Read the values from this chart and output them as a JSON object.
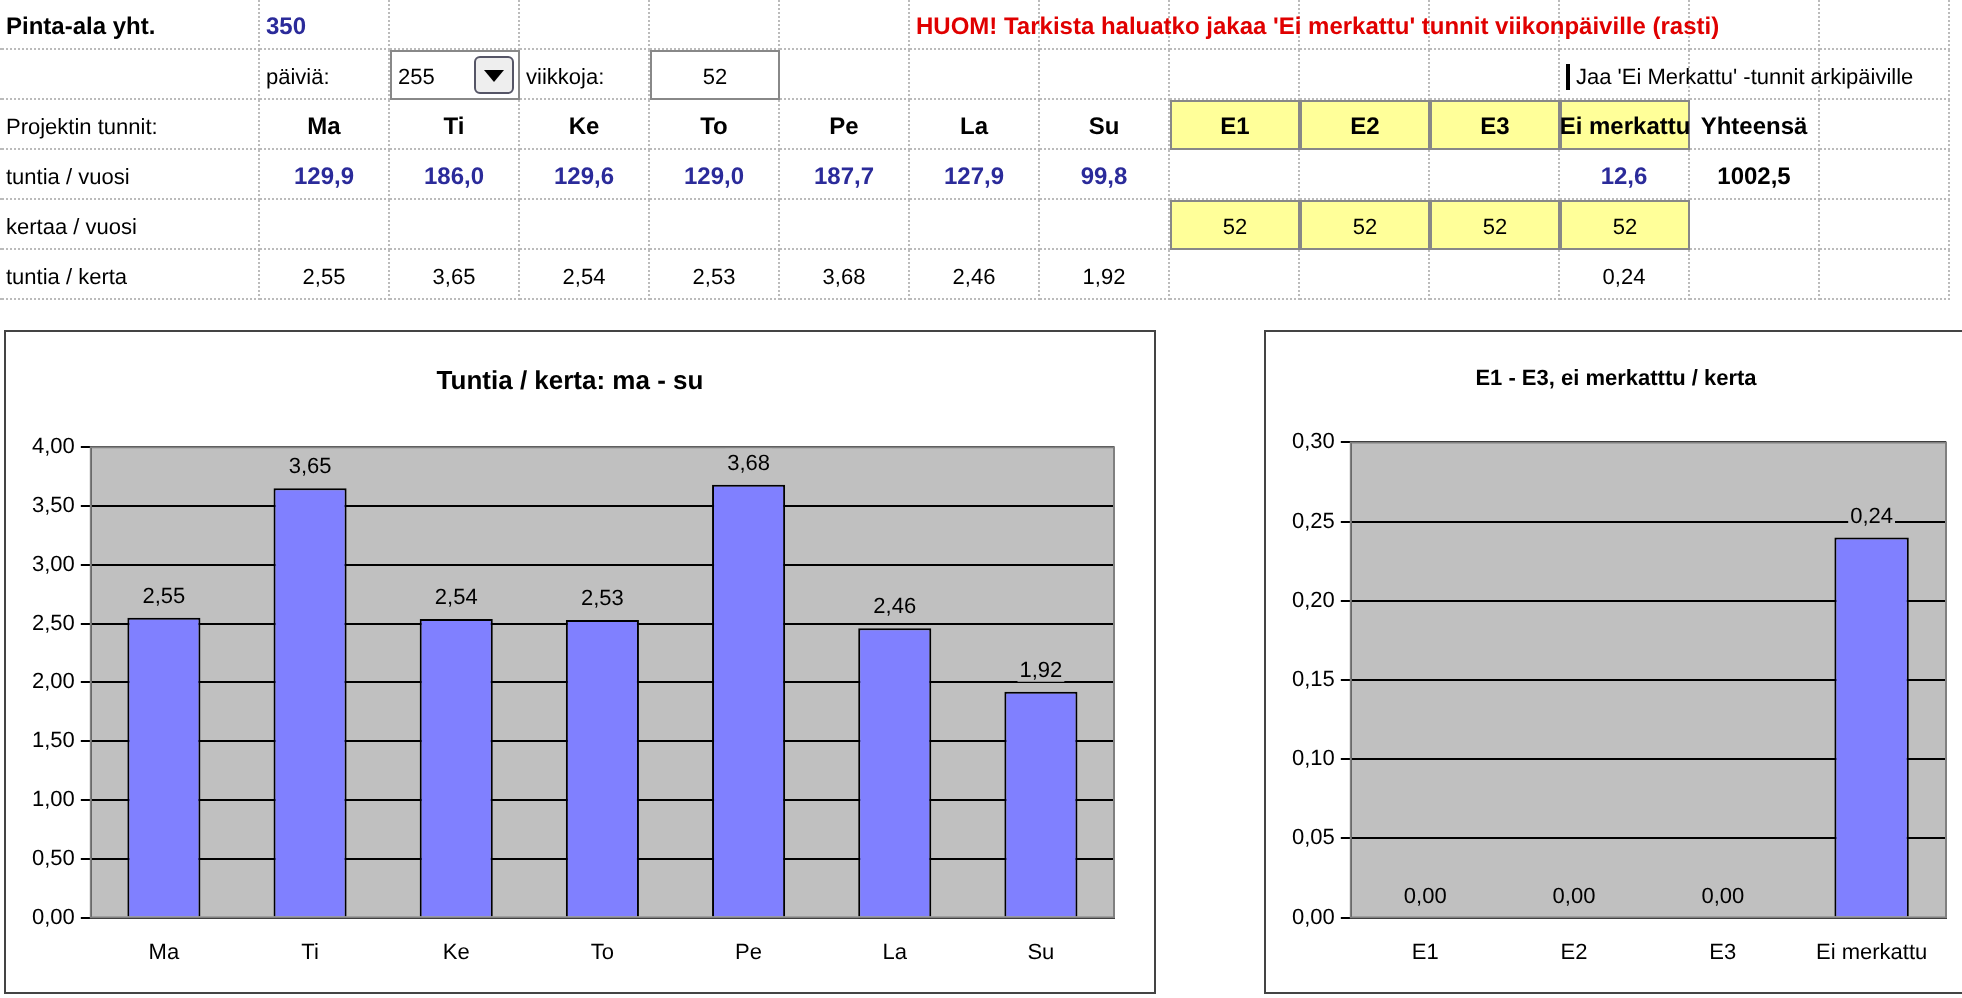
{
  "chart_data": [
    {
      "type": "other",
      "annotations": [
        "Pinta-ala yht.",
        "350",
        "HUOM! Tarkista haluatko jakaa 'Ei merkattu' tunnit viikonpäiville (rasti)",
        "päiviä:",
        "255",
        "viikkoja:",
        "52",
        "Jaa 'Ei Merkattu' -tunnit arkipäiville",
        "Projektin tunnit:",
        "Ma",
        "Ti",
        "Ke",
        "To",
        "Pe",
        "La",
        "Su",
        "E1",
        "E2",
        "E3",
        "Ei merkattu",
        "Yhteensä",
        "tuntia / vuosi",
        "129,9",
        "186,0",
        "129,6",
        "129,0",
        "187,7",
        "127,9",
        "99,8",
        "12,6",
        "1002,5",
        "kertaa / vuosi",
        "52",
        "52",
        "52",
        "52",
        "tuntia / kerta",
        "2,55",
        "3,65",
        "2,54",
        "2,53",
        "3,68",
        "2,46",
        "1,92",
        "0,24"
      ]
    },
    {
      "type": "bar",
      "title": "Tuntia / kerta: ma - su",
      "categories": [
        "Ma",
        "Ti",
        "Ke",
        "To",
        "Pe",
        "La",
        "Su"
      ],
      "values": [
        2.55,
        3.65,
        2.54,
        2.53,
        3.68,
        2.46,
        1.92
      ],
      "color": "#8080ff",
      "value_labels": [
        "2,55",
        "3,65",
        "2,54",
        "2,53",
        "3,68",
        "2,46",
        "1,92"
      ],
      "ylim": [
        0,
        4
      ],
      "yticks": [
        {
          "value": 0,
          "label": "0,00"
        },
        {
          "value": 0.5,
          "label": "0,50"
        },
        {
          "value": 1,
          "label": "1,00"
        },
        {
          "value": 1.5,
          "label": "1,50"
        },
        {
          "value": 2,
          "label": "2,00"
        },
        {
          "value": 2.5,
          "label": "2,50"
        },
        {
          "value": 3,
          "label": "3,00"
        },
        {
          "value": 3.5,
          "label": "3,50"
        },
        {
          "value": 4,
          "label": "4,00"
        }
      ],
      "grid": "y",
      "legend": false
    },
    {
      "type": "bar",
      "title": "E1 - E3, ei merkatttu / kerta",
      "categories": [
        "E1",
        "E2",
        "E3",
        "Ei merkattu"
      ],
      "values": [
        0,
        0,
        0,
        0.24
      ],
      "color": "#8080ff",
      "value_labels": [
        "0,00",
        "0,00",
        "0,00",
        "0,24"
      ],
      "ylim": [
        0,
        0.3
      ],
      "yticks": [
        {
          "value": 0,
          "label": "0,00"
        },
        {
          "value": 0.05,
          "label": "0,05"
        },
        {
          "value": 0.1,
          "label": "0,10"
        },
        {
          "value": 0.15,
          "label": "0,15"
        },
        {
          "value": 0.2,
          "label": "0,20"
        },
        {
          "value": 0.25,
          "label": "0,25"
        },
        {
          "value": 0.3,
          "label": "0,30"
        }
      ],
      "grid": "y",
      "legend": false
    }
  ]
}
